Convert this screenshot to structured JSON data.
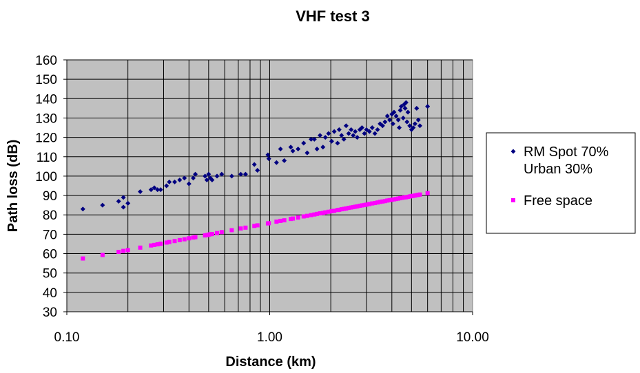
{
  "chart_data": {
    "type": "scatter",
    "title": "VHF test 3",
    "xlabel": "Distance (km)",
    "ylabel": "Path loss (dB)",
    "xscale": "log",
    "xlim": [
      0.1,
      10
    ],
    "ylim": [
      30,
      160
    ],
    "x_ticks": [
      0.1,
      1,
      10
    ],
    "x_tick_labels": [
      "0.10",
      "1.00",
      "10.00"
    ],
    "y_ticks": [
      30,
      40,
      50,
      60,
      70,
      80,
      90,
      100,
      110,
      120,
      130,
      140,
      150,
      160
    ],
    "grid": true,
    "legend_position": "right",
    "series": [
      {
        "name_lines": [
          "RM Spot 70%",
          "Urban 30%"
        ],
        "color": "#000080",
        "marker": "diamond",
        "points": [
          [
            0.12,
            83
          ],
          [
            0.15,
            85
          ],
          [
            0.18,
            87
          ],
          [
            0.19,
            84
          ],
          [
            0.19,
            89
          ],
          [
            0.2,
            86
          ],
          [
            0.23,
            92
          ],
          [
            0.26,
            93
          ],
          [
            0.27,
            94
          ],
          [
            0.28,
            93
          ],
          [
            0.29,
            93
          ],
          [
            0.31,
            95
          ],
          [
            0.32,
            97
          ],
          [
            0.34,
            97
          ],
          [
            0.36,
            98
          ],
          [
            0.38,
            99
          ],
          [
            0.4,
            96
          ],
          [
            0.42,
            99
          ],
          [
            0.43,
            101
          ],
          [
            0.48,
            100
          ],
          [
            0.49,
            98
          ],
          [
            0.5,
            101
          ],
          [
            0.51,
            99
          ],
          [
            0.52,
            98
          ],
          [
            0.55,
            100
          ],
          [
            0.58,
            101
          ],
          [
            0.65,
            100
          ],
          [
            0.72,
            101
          ],
          [
            0.76,
            101
          ],
          [
            0.84,
            106
          ],
          [
            0.87,
            103
          ],
          [
            0.98,
            111
          ],
          [
            0.99,
            109
          ],
          [
            1.08,
            107
          ],
          [
            1.13,
            114
          ],
          [
            1.18,
            108
          ],
          [
            1.27,
            115
          ],
          [
            1.3,
            113
          ],
          [
            1.38,
            114
          ],
          [
            1.47,
            117
          ],
          [
            1.53,
            112
          ],
          [
            1.6,
            119
          ],
          [
            1.66,
            119
          ],
          [
            1.71,
            114
          ],
          [
            1.77,
            121
          ],
          [
            1.83,
            115
          ],
          [
            1.88,
            120
          ],
          [
            1.95,
            122
          ],
          [
            2.02,
            118
          ],
          [
            2.08,
            123
          ],
          [
            2.16,
            117
          ],
          [
            2.2,
            124
          ],
          [
            2.26,
            121
          ],
          [
            2.32,
            119
          ],
          [
            2.38,
            126
          ],
          [
            2.45,
            122
          ],
          [
            2.52,
            124
          ],
          [
            2.58,
            121
          ],
          [
            2.64,
            123
          ],
          [
            2.7,
            120
          ],
          [
            2.78,
            124
          ],
          [
            2.85,
            125
          ],
          [
            2.93,
            122
          ],
          [
            3.0,
            124
          ],
          [
            3.1,
            123
          ],
          [
            3.2,
            125
          ],
          [
            3.3,
            122
          ],
          [
            3.4,
            124
          ],
          [
            3.5,
            127
          ],
          [
            3.6,
            126
          ],
          [
            3.7,
            128
          ],
          [
            3.8,
            131
          ],
          [
            3.9,
            129
          ],
          [
            4.0,
            132
          ],
          [
            4.05,
            127
          ],
          [
            4.1,
            133
          ],
          [
            4.2,
            131
          ],
          [
            4.3,
            129
          ],
          [
            4.35,
            125
          ],
          [
            4.4,
            134
          ],
          [
            4.45,
            136
          ],
          [
            4.55,
            130
          ],
          [
            4.6,
            137
          ],
          [
            4.65,
            135
          ],
          [
            4.7,
            138
          ],
          [
            4.75,
            128
          ],
          [
            4.8,
            133
          ],
          [
            4.9,
            126
          ],
          [
            5.0,
            124
          ],
          [
            5.1,
            125
          ],
          [
            5.2,
            127
          ],
          [
            5.3,
            135
          ],
          [
            5.4,
            129
          ],
          [
            5.5,
            126
          ],
          [
            6.0,
            136
          ]
        ]
      },
      {
        "name": "Free space",
        "color": "#ff00ff",
        "marker": "square",
        "points": [
          [
            0.12,
            57.5
          ],
          [
            0.15,
            59.3
          ],
          [
            0.18,
            60.9
          ],
          [
            0.19,
            61.4
          ],
          [
            0.2,
            61.8
          ],
          [
            0.23,
            63.1
          ],
          [
            0.26,
            64.2
          ],
          [
            0.27,
            64.5
          ],
          [
            0.28,
            64.8
          ],
          [
            0.29,
            65.1
          ],
          [
            0.31,
            65.7
          ],
          [
            0.32,
            66.0
          ],
          [
            0.34,
            66.5
          ],
          [
            0.36,
            67.0
          ],
          [
            0.38,
            67.4
          ],
          [
            0.4,
            67.9
          ],
          [
            0.42,
            68.3
          ],
          [
            0.43,
            68.5
          ],
          [
            0.48,
            69.4
          ],
          [
            0.49,
            69.6
          ],
          [
            0.5,
            69.8
          ],
          [
            0.51,
            70.0
          ],
          [
            0.52,
            70.1
          ],
          [
            0.55,
            70.6
          ],
          [
            0.58,
            71.1
          ],
          [
            0.65,
            72.1
          ],
          [
            0.72,
            73.0
          ],
          [
            0.76,
            73.4
          ],
          [
            0.84,
            74.3
          ],
          [
            0.87,
            74.6
          ],
          [
            0.98,
            75.6
          ],
          [
            0.99,
            75.7
          ],
          [
            1.08,
            76.5
          ],
          [
            1.13,
            76.9
          ],
          [
            1.18,
            77.2
          ],
          [
            1.27,
            77.9
          ],
          [
            1.3,
            78.1
          ],
          [
            1.38,
            78.6
          ],
          [
            1.47,
            79.2
          ],
          [
            1.53,
            79.5
          ],
          [
            1.6,
            79.9
          ],
          [
            1.66,
            80.2
          ],
          [
            1.71,
            80.5
          ],
          [
            1.77,
            80.8
          ],
          [
            1.83,
            81.0
          ],
          [
            1.88,
            81.3
          ],
          [
            1.95,
            81.6
          ],
          [
            2.02,
            81.9
          ],
          [
            2.08,
            82.1
          ],
          [
            2.16,
            82.5
          ],
          [
            2.2,
            82.6
          ],
          [
            2.26,
            82.9
          ],
          [
            2.32,
            83.1
          ],
          [
            2.38,
            83.3
          ],
          [
            2.45,
            83.6
          ],
          [
            2.52,
            83.8
          ],
          [
            2.58,
            84.0
          ],
          [
            2.64,
            84.2
          ],
          [
            2.7,
            84.4
          ],
          [
            2.78,
            84.7
          ],
          [
            2.85,
            84.9
          ],
          [
            2.93,
            85.1
          ],
          [
            3.0,
            85.3
          ],
          [
            3.1,
            85.6
          ],
          [
            3.2,
            85.9
          ],
          [
            3.3,
            86.1
          ],
          [
            3.4,
            86.4
          ],
          [
            3.5,
            86.7
          ],
          [
            3.6,
            86.9
          ],
          [
            3.7,
            87.1
          ],
          [
            3.8,
            87.4
          ],
          [
            3.9,
            87.6
          ],
          [
            4.0,
            87.8
          ],
          [
            4.1,
            88.0
          ],
          [
            4.2,
            88.2
          ],
          [
            4.3,
            88.4
          ],
          [
            4.4,
            88.6
          ],
          [
            4.5,
            88.8
          ],
          [
            4.6,
            89.0
          ],
          [
            4.7,
            89.1
          ],
          [
            4.8,
            89.3
          ],
          [
            4.9,
            89.5
          ],
          [
            5.0,
            89.7
          ],
          [
            5.1,
            89.8
          ],
          [
            5.2,
            90.0
          ],
          [
            5.3,
            90.2
          ],
          [
            5.4,
            90.3
          ],
          [
            5.5,
            90.5
          ],
          [
            6.0,
            91.2
          ]
        ]
      }
    ]
  }
}
